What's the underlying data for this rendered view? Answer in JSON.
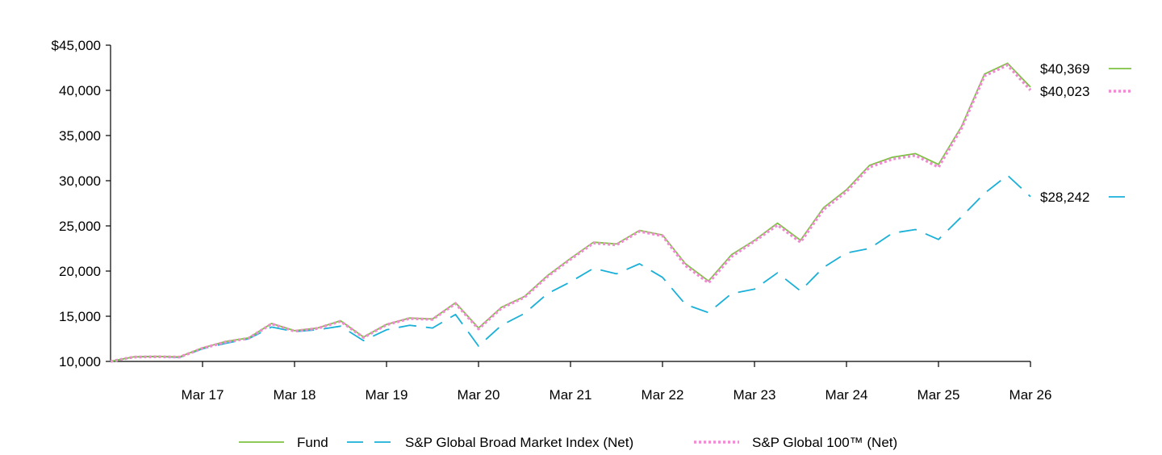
{
  "chart_data": {
    "type": "line",
    "title": "",
    "xlabel": "",
    "ylabel": "",
    "ylim": [
      10000,
      45000
    ],
    "y_ticks": [
      10000,
      15000,
      20000,
      25000,
      30000,
      35000,
      40000,
      45000
    ],
    "y_tick_labels": [
      "10,000",
      "15,000",
      "20,000",
      "25,000",
      "30,000",
      "35,000",
      "40,000",
      "$45,000"
    ],
    "x_range": [
      "2016-03",
      "2026-03"
    ],
    "x_ticks": [
      "2017-03",
      "2018-03",
      "2019-03",
      "2020-03",
      "2021-03",
      "2022-03",
      "2023-03",
      "2024-03",
      "2025-03",
      "2026-03"
    ],
    "x_tick_labels": [
      "Mar 17",
      "Mar 18",
      "Mar 19",
      "Mar 20",
      "Mar 21",
      "Mar 22",
      "Mar 23",
      "Mar 24",
      "Mar 25",
      "Mar 26"
    ],
    "grid": false,
    "legend": "bottom",
    "series": [
      {
        "name": "Fund",
        "color": "#7dc242",
        "style": "solid",
        "end_label": "$40,369",
        "points": [
          [
            "2016-03",
            10000
          ],
          [
            "2016-06",
            10500
          ],
          [
            "2016-09",
            10550
          ],
          [
            "2016-12",
            10500
          ],
          [
            "2017-03",
            11500
          ],
          [
            "2017-06",
            12200
          ],
          [
            "2017-09",
            12600
          ],
          [
            "2017-12",
            14200
          ],
          [
            "2018-03",
            13400
          ],
          [
            "2018-06",
            13700
          ],
          [
            "2018-09",
            14500
          ],
          [
            "2018-12",
            12700
          ],
          [
            "2019-03",
            14100
          ],
          [
            "2019-06",
            14800
          ],
          [
            "2019-09",
            14700
          ],
          [
            "2019-12",
            16500
          ],
          [
            "2020-03",
            13700
          ],
          [
            "2020-06",
            16000
          ],
          [
            "2020-09",
            17200
          ],
          [
            "2020-12",
            19500
          ],
          [
            "2021-03",
            21400
          ],
          [
            "2021-06",
            23200
          ],
          [
            "2021-09",
            23000
          ],
          [
            "2021-12",
            24500
          ],
          [
            "2022-03",
            24000
          ],
          [
            "2022-06",
            20800
          ],
          [
            "2022-09",
            18900
          ],
          [
            "2022-12",
            21800
          ],
          [
            "2023-03",
            23400
          ],
          [
            "2023-06",
            25300
          ],
          [
            "2023-09",
            23400
          ],
          [
            "2023-12",
            27000
          ],
          [
            "2024-03",
            29000
          ],
          [
            "2024-06",
            31700
          ],
          [
            "2024-09",
            32600
          ],
          [
            "2024-12",
            33000
          ],
          [
            "2025-03",
            31800
          ],
          [
            "2025-06",
            36000
          ],
          [
            "2025-09",
            41800
          ],
          [
            "2025-12",
            43000
          ],
          [
            "2026-03",
            40369
          ]
        ]
      },
      {
        "name": "S&P Global Broad Market Index (Net)",
        "color": "#1ab0d8",
        "style": "dashed",
        "end_label": "$28,242",
        "points": [
          [
            "2016-03",
            10000
          ],
          [
            "2016-06",
            10500
          ],
          [
            "2016-09",
            10550
          ],
          [
            "2016-12",
            10450
          ],
          [
            "2017-03",
            11400
          ],
          [
            "2017-06",
            12000
          ],
          [
            "2017-09",
            12500
          ],
          [
            "2017-12",
            13800
          ],
          [
            "2018-03",
            13300
          ],
          [
            "2018-06",
            13500
          ],
          [
            "2018-09",
            13900
          ],
          [
            "2018-12",
            12300
          ],
          [
            "2019-03",
            13500
          ],
          [
            "2019-06",
            14000
          ],
          [
            "2019-09",
            13700
          ],
          [
            "2019-12",
            15200
          ],
          [
            "2020-03",
            11700
          ],
          [
            "2020-06",
            14000
          ],
          [
            "2020-09",
            15300
          ],
          [
            "2020-12",
            17500
          ],
          [
            "2021-03",
            18800
          ],
          [
            "2021-06",
            20300
          ],
          [
            "2021-09",
            19700
          ],
          [
            "2021-12",
            20800
          ],
          [
            "2022-03",
            19300
          ],
          [
            "2022-06",
            16300
          ],
          [
            "2022-09",
            15400
          ],
          [
            "2022-12",
            17500
          ],
          [
            "2023-03",
            18000
          ],
          [
            "2023-06",
            19800
          ],
          [
            "2023-09",
            17800
          ],
          [
            "2023-12",
            20400
          ],
          [
            "2024-03",
            22000
          ],
          [
            "2024-06",
            22500
          ],
          [
            "2024-09",
            24200
          ],
          [
            "2024-12",
            24600
          ],
          [
            "2025-03",
            23500
          ],
          [
            "2025-06",
            26000
          ],
          [
            "2025-09",
            28600
          ],
          [
            "2025-12",
            30600
          ],
          [
            "2026-03",
            28242
          ]
        ]
      },
      {
        "name": "S&P Global 100™ (Net)",
        "color": "#f08ad2",
        "style": "dotted",
        "end_label": "$40,023",
        "points": [
          [
            "2016-03",
            10000
          ],
          [
            "2016-06",
            10480
          ],
          [
            "2016-09",
            10520
          ],
          [
            "2016-12",
            10480
          ],
          [
            "2017-03",
            11450
          ],
          [
            "2017-06",
            12150
          ],
          [
            "2017-09",
            12550
          ],
          [
            "2017-12",
            14150
          ],
          [
            "2018-03",
            13350
          ],
          [
            "2018-06",
            13650
          ],
          [
            "2018-09",
            14450
          ],
          [
            "2018-12",
            12650
          ],
          [
            "2019-03",
            14050
          ],
          [
            "2019-06",
            14750
          ],
          [
            "2019-09",
            14650
          ],
          [
            "2019-12",
            16400
          ],
          [
            "2020-03",
            13600
          ],
          [
            "2020-06",
            15900
          ],
          [
            "2020-09",
            17100
          ],
          [
            "2020-12",
            19400
          ],
          [
            "2021-03",
            21300
          ],
          [
            "2021-06",
            23100
          ],
          [
            "2021-09",
            22900
          ],
          [
            "2021-12",
            24400
          ],
          [
            "2022-03",
            23900
          ],
          [
            "2022-06",
            20600
          ],
          [
            "2022-09",
            18700
          ],
          [
            "2022-12",
            21600
          ],
          [
            "2023-03",
            23300
          ],
          [
            "2023-06",
            25100
          ],
          [
            "2023-09",
            23200
          ],
          [
            "2023-12",
            26800
          ],
          [
            "2024-03",
            28800
          ],
          [
            "2024-06",
            31500
          ],
          [
            "2024-09",
            32400
          ],
          [
            "2024-12",
            32800
          ],
          [
            "2025-03",
            31500
          ],
          [
            "2025-06",
            35800
          ],
          [
            "2025-09",
            41600
          ],
          [
            "2025-12",
            42800
          ],
          [
            "2026-03",
            40023
          ]
        ]
      }
    ]
  }
}
